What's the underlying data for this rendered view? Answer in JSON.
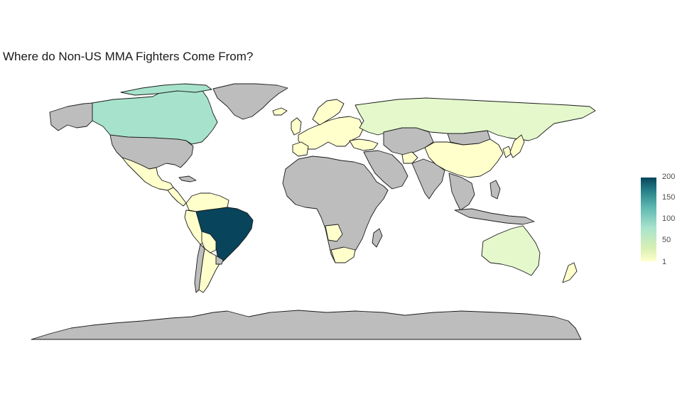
{
  "title": "Where do Non-US MMA Fighters Come From?",
  "colors": {
    "no_data": "#bdbdbd",
    "very_low": "#ffffcc",
    "low": "#e4f8cc",
    "mid": "#a7e3cc",
    "max": "#08445c",
    "border": "#1a1a1a"
  },
  "legend": {
    "ticks": [
      "200",
      "150",
      "100",
      "50",
      "1"
    ],
    "min": 1,
    "max": 200
  }
}
